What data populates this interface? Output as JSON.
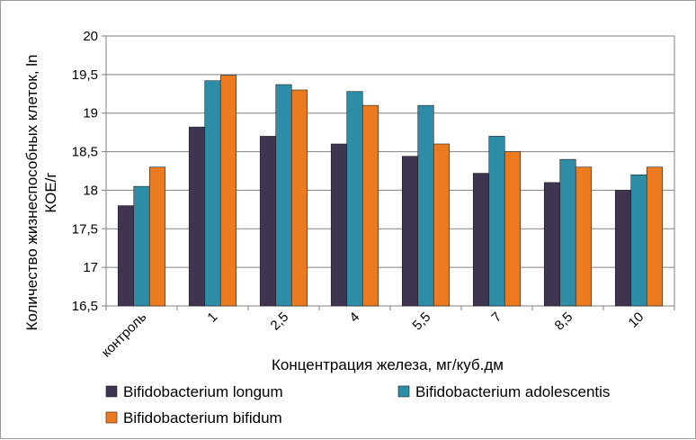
{
  "chart_data": {
    "type": "bar",
    "categories": [
      "контроль",
      "1",
      "2,5",
      "4",
      "5,5",
      "7",
      "8,5",
      "10"
    ],
    "series": [
      {
        "name": "Bifidobacterium longum",
        "color": "#3f3551",
        "values": [
          17.8,
          18.82,
          18.7,
          18.6,
          18.44,
          18.22,
          18.1,
          18.0
        ]
      },
      {
        "name": "Bifidobacterium adolescentis",
        "color": "#2e8da6",
        "values": [
          18.05,
          19.42,
          19.37,
          19.28,
          19.1,
          18.7,
          18.4,
          18.2
        ]
      },
      {
        "name": "Bifidobacterium bifidum",
        "color": "#ec7a1e",
        "values": [
          18.3,
          19.49,
          19.3,
          19.1,
          18.6,
          18.5,
          18.3,
          18.3
        ]
      }
    ],
    "ylim": [
      16.5,
      20
    ],
    "yticks": [
      16.5,
      17,
      17.5,
      18,
      18.5,
      19,
      19.5,
      20
    ],
    "ytick_labels": [
      "16,5",
      "17",
      "17,5",
      "18",
      "18,5",
      "19",
      "19,5",
      "20"
    ],
    "ylabel_line1": "Количество жизнеспособных клеток, ln",
    "ylabel_line2": "КОЕ/г",
    "xlabel": "Концентрация железа, мг/куб.дм",
    "grid": true,
    "legend_position": "bottom"
  }
}
